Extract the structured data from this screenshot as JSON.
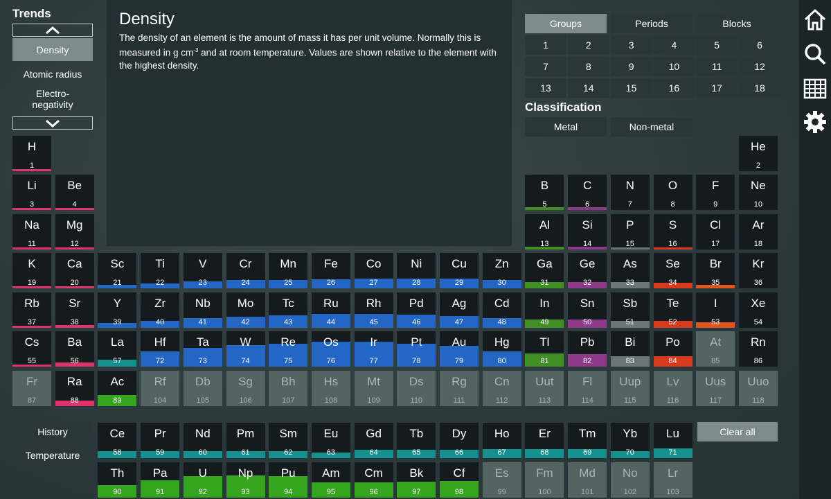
{
  "trends": {
    "title": "Trends",
    "items": [
      "Density",
      "Atomic radius",
      "Electro-\nnegativity"
    ]
  },
  "description": {
    "title": "Density",
    "text_before": "The density of an element is the amount of mass it has per unit volume. Normally this is measured in g cm",
    "superscript": "-3",
    "text_after": " and at room temperature. Values are shown relative to the element with the highest density."
  },
  "tabs": [
    "Groups",
    "Periods",
    "Blocks"
  ],
  "groups": [
    "1",
    "2",
    "3",
    "4",
    "5",
    "6",
    "7",
    "8",
    "9",
    "10",
    "11",
    "12",
    "13",
    "14",
    "15",
    "16",
    "17",
    "18"
  ],
  "classification": {
    "title": "Classification",
    "options": [
      "Metal",
      "Non-metal"
    ]
  },
  "bottom_buttons": [
    "History",
    "Temperature"
  ],
  "clear_all_label": "Clear all",
  "colors": {
    "s_block": "#e0336b",
    "d_block": "#2366c4",
    "p_post": "#3f8f24",
    "metalloid": "#8e3a8a",
    "nonmetal_grey": "#6c7578",
    "halogen": "#d93a1d",
    "halogen2": "#e2541e",
    "lanthanide": "#14918e",
    "actinide": "#35a51f"
  },
  "icons": [
    "home-icon",
    "search-icon",
    "table-icon",
    "gear-icon"
  ],
  "elements": [
    {
      "s": "H",
      "n": "1",
      "c": 1,
      "r": 1,
      "d": 0,
      "k": "s"
    },
    {
      "s": "He",
      "n": "2",
      "c": 18,
      "r": 1,
      "d": 0,
      "k": "none"
    },
    {
      "s": "Li",
      "n": "3",
      "c": 1,
      "r": 2,
      "d": 0.03,
      "k": "s"
    },
    {
      "s": "Be",
      "n": "4",
      "c": 2,
      "r": 2,
      "d": 0.08,
      "k": "s"
    },
    {
      "s": "B",
      "n": "5",
      "c": 13,
      "r": 2,
      "d": 0.1,
      "k": "post"
    },
    {
      "s": "C",
      "n": "6",
      "c": 14,
      "r": 2,
      "d": 0.1,
      "k": "metalloid"
    },
    {
      "s": "N",
      "n": "7",
      "c": 15,
      "r": 2,
      "d": 0,
      "k": "none"
    },
    {
      "s": "O",
      "n": "8",
      "c": 16,
      "r": 2,
      "d": 0,
      "k": "none"
    },
    {
      "s": "F",
      "n": "9",
      "c": 17,
      "r": 2,
      "d": 0,
      "k": "none"
    },
    {
      "s": "Ne",
      "n": "10",
      "c": 18,
      "r": 2,
      "d": 0,
      "k": "none"
    },
    {
      "s": "Na",
      "n": "11",
      "c": 1,
      "r": 3,
      "d": 0.04,
      "k": "s"
    },
    {
      "s": "Mg",
      "n": "12",
      "c": 2,
      "r": 3,
      "d": 0.08,
      "k": "s"
    },
    {
      "s": "Al",
      "n": "13",
      "c": 13,
      "r": 3,
      "d": 0.12,
      "k": "post"
    },
    {
      "s": "Si",
      "n": "14",
      "c": 14,
      "r": 3,
      "d": 0.1,
      "k": "metalloid"
    },
    {
      "s": "P",
      "n": "15",
      "c": 15,
      "r": 3,
      "d": 0.09,
      "k": "grey"
    },
    {
      "s": "S",
      "n": "16",
      "c": 16,
      "r": 3,
      "d": 0.09,
      "k": "halogen"
    },
    {
      "s": "Cl",
      "n": "17",
      "c": 17,
      "r": 3,
      "d": 0,
      "k": "none"
    },
    {
      "s": "Ar",
      "n": "18",
      "c": 18,
      "r": 3,
      "d": 0,
      "k": "none"
    },
    {
      "s": "K",
      "n": "19",
      "c": 1,
      "r": 4,
      "d": 0.04,
      "k": "s"
    },
    {
      "s": "Ca",
      "n": "20",
      "c": 2,
      "r": 4,
      "d": 0.07,
      "k": "s"
    },
    {
      "s": "Sc",
      "n": "21",
      "c": 3,
      "r": 4,
      "d": 0.13,
      "k": "d"
    },
    {
      "s": "Ti",
      "n": "22",
      "c": 4,
      "r": 4,
      "d": 0.2,
      "k": "d"
    },
    {
      "s": "V",
      "n": "23",
      "c": 5,
      "r": 4,
      "d": 0.27,
      "k": "d"
    },
    {
      "s": "Cr",
      "n": "24",
      "c": 6,
      "r": 4,
      "d": 0.32,
      "k": "d"
    },
    {
      "s": "Mn",
      "n": "25",
      "c": 7,
      "r": 4,
      "d": 0.33,
      "k": "d"
    },
    {
      "s": "Fe",
      "n": "26",
      "c": 8,
      "r": 4,
      "d": 0.35,
      "k": "d"
    },
    {
      "s": "Co",
      "n": "27",
      "c": 9,
      "r": 4,
      "d": 0.39,
      "k": "d"
    },
    {
      "s": "Ni",
      "n": "28",
      "c": 10,
      "r": 4,
      "d": 0.39,
      "k": "d"
    },
    {
      "s": "Cu",
      "n": "29",
      "c": 11,
      "r": 4,
      "d": 0.4,
      "k": "d"
    },
    {
      "s": "Zn",
      "n": "30",
      "c": 12,
      "r": 4,
      "d": 0.32,
      "k": "d"
    },
    {
      "s": "Ga",
      "n": "31",
      "c": 13,
      "r": 4,
      "d": 0.26,
      "k": "post"
    },
    {
      "s": "Ge",
      "n": "32",
      "c": 14,
      "r": 4,
      "d": 0.24,
      "k": "metalloid"
    },
    {
      "s": "As",
      "n": "33",
      "c": 15,
      "r": 4,
      "d": 0.26,
      "k": "grey"
    },
    {
      "s": "Se",
      "n": "34",
      "c": 16,
      "r": 4,
      "d": 0.22,
      "k": "halogen"
    },
    {
      "s": "Br",
      "n": "35",
      "c": 17,
      "r": 4,
      "d": 0.14,
      "k": "halogen2"
    },
    {
      "s": "Kr",
      "n": "36",
      "c": 18,
      "r": 4,
      "d": 0,
      "k": "none"
    },
    {
      "s": "Rb",
      "n": "37",
      "c": 1,
      "r": 5,
      "d": 0.06,
      "k": "s"
    },
    {
      "s": "Sr",
      "n": "38",
      "c": 2,
      "r": 5,
      "d": 0.11,
      "k": "s"
    },
    {
      "s": "Y",
      "n": "39",
      "c": 3,
      "r": 5,
      "d": 0.2,
      "k": "d"
    },
    {
      "s": "Zr",
      "n": "40",
      "c": 4,
      "r": 5,
      "d": 0.29,
      "k": "d"
    },
    {
      "s": "Nb",
      "n": "41",
      "c": 5,
      "r": 5,
      "d": 0.38,
      "k": "d"
    },
    {
      "s": "Mo",
      "n": "42",
      "c": 6,
      "r": 5,
      "d": 0.45,
      "k": "d"
    },
    {
      "s": "Tc",
      "n": "43",
      "c": 7,
      "r": 5,
      "d": 0.5,
      "k": "d"
    },
    {
      "s": "Ru",
      "n": "44",
      "c": 8,
      "r": 5,
      "d": 0.55,
      "k": "d"
    },
    {
      "s": "Rh",
      "n": "45",
      "c": 9,
      "r": 5,
      "d": 0.55,
      "k": "d"
    },
    {
      "s": "Pd",
      "n": "46",
      "c": 10,
      "r": 5,
      "d": 0.53,
      "k": "d"
    },
    {
      "s": "Ag",
      "n": "47",
      "c": 11,
      "r": 5,
      "d": 0.46,
      "k": "d"
    },
    {
      "s": "Cd",
      "n": "48",
      "c": 12,
      "r": 5,
      "d": 0.38,
      "k": "d"
    },
    {
      "s": "In",
      "n": "49",
      "c": 13,
      "r": 5,
      "d": 0.32,
      "k": "post"
    },
    {
      "s": "Sn",
      "n": "50",
      "c": 14,
      "r": 5,
      "d": 0.32,
      "k": "metalloid"
    },
    {
      "s": "Sb",
      "n": "51",
      "c": 15,
      "r": 5,
      "d": 0.29,
      "k": "grey"
    },
    {
      "s": "Te",
      "n": "52",
      "c": 16,
      "r": 5,
      "d": 0.27,
      "k": "halogen"
    },
    {
      "s": "I",
      "n": "53",
      "c": 17,
      "r": 5,
      "d": 0.22,
      "k": "halogen2"
    },
    {
      "s": "Xe",
      "n": "54",
      "c": 18,
      "r": 5,
      "d": 0,
      "k": "none"
    },
    {
      "s": "Cs",
      "n": "55",
      "c": 1,
      "r": 6,
      "d": 0.08,
      "k": "s"
    },
    {
      "s": "Ba",
      "n": "56",
      "c": 2,
      "r": 6,
      "d": 0.17,
      "k": "s"
    },
    {
      "s": "La",
      "n": "57",
      "c": 3,
      "r": 6,
      "d": 0.27,
      "k": "lan"
    },
    {
      "s": "Hf",
      "n": "72",
      "c": 4,
      "r": 6,
      "d": 0.6,
      "k": "d"
    },
    {
      "s": "Ta",
      "n": "73",
      "c": 5,
      "r": 6,
      "d": 0.75,
      "k": "d"
    },
    {
      "s": "W",
      "n": "74",
      "c": 6,
      "r": 6,
      "d": 0.85,
      "k": "d"
    },
    {
      "s": "Re",
      "n": "75",
      "c": 7,
      "r": 6,
      "d": 0.93,
      "k": "d"
    },
    {
      "s": "Os",
      "n": "76",
      "c": 8,
      "r": 6,
      "d": 1.0,
      "k": "d"
    },
    {
      "s": "Ir",
      "n": "77",
      "c": 9,
      "r": 6,
      "d": 1.0,
      "k": "d"
    },
    {
      "s": "Pt",
      "n": "78",
      "c": 10,
      "r": 6,
      "d": 0.93,
      "k": "d"
    },
    {
      "s": "Au",
      "n": "79",
      "c": 11,
      "r": 6,
      "d": 0.84,
      "k": "d"
    },
    {
      "s": "Hg",
      "n": "80",
      "c": 12,
      "r": 6,
      "d": 0.6,
      "k": "d"
    },
    {
      "s": "Tl",
      "n": "81",
      "c": 13,
      "r": 6,
      "d": 0.52,
      "k": "post"
    },
    {
      "s": "Pb",
      "n": "82",
      "c": 14,
      "r": 6,
      "d": 0.5,
      "k": "metalloid"
    },
    {
      "s": "Bi",
      "n": "83",
      "c": 15,
      "r": 6,
      "d": 0.43,
      "k": "grey"
    },
    {
      "s": "Po",
      "n": "84",
      "c": 16,
      "r": 6,
      "d": 0.41,
      "k": "halogen"
    },
    {
      "s": "At",
      "n": "85",
      "c": 17,
      "r": 6,
      "d": 0,
      "k": "syn"
    },
    {
      "s": "Rn",
      "n": "86",
      "c": 18,
      "r": 6,
      "d": 0,
      "k": "none"
    },
    {
      "s": "Fr",
      "n": "87",
      "c": 1,
      "r": 7,
      "d": 0,
      "k": "syn"
    },
    {
      "s": "Ra",
      "n": "88",
      "c": 2,
      "r": 7,
      "d": 0.22,
      "k": "s"
    },
    {
      "s": "Ac",
      "n": "89",
      "c": 3,
      "r": 7,
      "d": 0.45,
      "k": "act"
    },
    {
      "s": "Rf",
      "n": "104",
      "c": 4,
      "r": 7,
      "d": 0,
      "k": "syn"
    },
    {
      "s": "Db",
      "n": "105",
      "c": 5,
      "r": 7,
      "d": 0,
      "k": "syn"
    },
    {
      "s": "Sg",
      "n": "106",
      "c": 6,
      "r": 7,
      "d": 0,
      "k": "syn"
    },
    {
      "s": "Bh",
      "n": "107",
      "c": 7,
      "r": 7,
      "d": 0,
      "k": "syn"
    },
    {
      "s": "Hs",
      "n": "108",
      "c": 8,
      "r": 7,
      "d": 0,
      "k": "syn"
    },
    {
      "s": "Mt",
      "n": "109",
      "c": 9,
      "r": 7,
      "d": 0,
      "k": "syn"
    },
    {
      "s": "Ds",
      "n": "110",
      "c": 10,
      "r": 7,
      "d": 0,
      "k": "syn"
    },
    {
      "s": "Rg",
      "n": "111",
      "c": 11,
      "r": 7,
      "d": 0,
      "k": "syn"
    },
    {
      "s": "Cn",
      "n": "112",
      "c": 12,
      "r": 7,
      "d": 0,
      "k": "syn"
    },
    {
      "s": "Uut",
      "n": "113",
      "c": 13,
      "r": 7,
      "d": 0,
      "k": "syn"
    },
    {
      "s": "Fl",
      "n": "114",
      "c": 14,
      "r": 7,
      "d": 0,
      "k": "syn"
    },
    {
      "s": "Uup",
      "n": "115",
      "c": 15,
      "r": 7,
      "d": 0,
      "k": "syn"
    },
    {
      "s": "Lv",
      "n": "116",
      "c": 16,
      "r": 7,
      "d": 0,
      "k": "syn"
    },
    {
      "s": "Uus",
      "n": "117",
      "c": 17,
      "r": 7,
      "d": 0,
      "k": "syn"
    },
    {
      "s": "Uuo",
      "n": "118",
      "c": 18,
      "r": 7,
      "d": 0,
      "k": "syn"
    },
    {
      "s": "Ce",
      "n": "58",
      "c": 3,
      "r": 9,
      "d": 0.28,
      "k": "lan"
    },
    {
      "s": "Pr",
      "n": "59",
      "c": 4,
      "r": 9,
      "d": 0.28,
      "k": "lan"
    },
    {
      "s": "Nd",
      "n": "60",
      "c": 5,
      "r": 9,
      "d": 0.28,
      "k": "lan"
    },
    {
      "s": "Pm",
      "n": "61",
      "c": 6,
      "r": 9,
      "d": 0.29,
      "k": "lan"
    },
    {
      "s": "Sm",
      "n": "62",
      "c": 7,
      "r": 9,
      "d": 0.29,
      "k": "lan"
    },
    {
      "s": "Eu",
      "n": "63",
      "c": 8,
      "r": 9,
      "d": 0.22,
      "k": "lan"
    },
    {
      "s": "Gd",
      "n": "64",
      "c": 9,
      "r": 9,
      "d": 0.32,
      "k": "lan"
    },
    {
      "s": "Tb",
      "n": "65",
      "c": 10,
      "r": 9,
      "d": 0.33,
      "k": "lan"
    },
    {
      "s": "Dy",
      "n": "66",
      "c": 11,
      "r": 9,
      "d": 0.34,
      "k": "lan"
    },
    {
      "s": "Ho",
      "n": "67",
      "c": 12,
      "r": 9,
      "d": 0.35,
      "k": "lan"
    },
    {
      "s": "Er",
      "n": "68",
      "c": 13,
      "r": 9,
      "d": 0.36,
      "k": "lan"
    },
    {
      "s": "Tm",
      "n": "69",
      "c": 14,
      "r": 9,
      "d": 0.36,
      "k": "lan"
    },
    {
      "s": "Yb",
      "n": "70",
      "c": 15,
      "r": 9,
      "d": 0.28,
      "k": "lan"
    },
    {
      "s": "Lu",
      "n": "71",
      "c": 16,
      "r": 9,
      "d": 0.38,
      "k": "lan"
    },
    {
      "s": "Th",
      "n": "90",
      "c": 3,
      "r": 10,
      "d": 0.5,
      "k": "act"
    },
    {
      "s": "Pa",
      "n": "91",
      "c": 4,
      "r": 10,
      "d": 0.7,
      "k": "act"
    },
    {
      "s": "U",
      "n": "92",
      "c": 5,
      "r": 10,
      "d": 0.85,
      "k": "act"
    },
    {
      "s": "Np",
      "n": "93",
      "c": 6,
      "r": 10,
      "d": 0.9,
      "k": "act"
    },
    {
      "s": "Pu",
      "n": "94",
      "c": 7,
      "r": 10,
      "d": 0.85,
      "k": "act"
    },
    {
      "s": "Am",
      "n": "95",
      "c": 8,
      "r": 10,
      "d": 0.6,
      "k": "act"
    },
    {
      "s": "Cm",
      "n": "96",
      "c": 9,
      "r": 10,
      "d": 0.6,
      "k": "act"
    },
    {
      "s": "Bk",
      "n": "97",
      "c": 10,
      "r": 10,
      "d": 0.65,
      "k": "act"
    },
    {
      "s": "Cf",
      "n": "98",
      "c": 11,
      "r": 10,
      "d": 0.68,
      "k": "act"
    },
    {
      "s": "Es",
      "n": "99",
      "c": 12,
      "r": 10,
      "d": 0,
      "k": "syn"
    },
    {
      "s": "Fm",
      "n": "100",
      "c": 13,
      "r": 10,
      "d": 0,
      "k": "syn"
    },
    {
      "s": "Md",
      "n": "101",
      "c": 14,
      "r": 10,
      "d": 0,
      "k": "syn"
    },
    {
      "s": "No",
      "n": "102",
      "c": 15,
      "r": 10,
      "d": 0,
      "k": "syn"
    },
    {
      "s": "Lr",
      "n": "103",
      "c": 16,
      "r": 10,
      "d": 0,
      "k": "syn"
    }
  ]
}
